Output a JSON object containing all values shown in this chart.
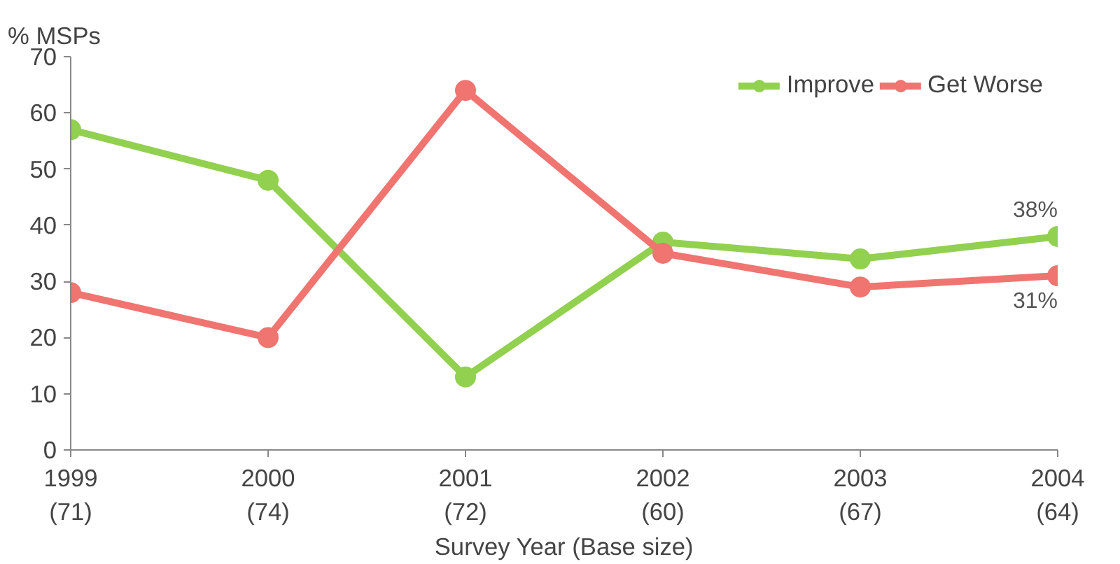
{
  "chart_data": {
    "type": "line",
    "ylabel": "% MSPs",
    "xlabel": "Survey Year (Base size)",
    "categories": [
      "1999\n(71)",
      "2000\n(74)",
      "2001\n(72)",
      "2002\n(60)",
      "2003\n(67)",
      "2004\n(64)"
    ],
    "ylim": [
      0,
      70
    ],
    "yticks": [
      0,
      10,
      20,
      30,
      40,
      50,
      60,
      70
    ],
    "grid": false,
    "legend": "top right",
    "marker": "circle",
    "line_style": "solid",
    "series": [
      {
        "name": "Improve",
        "color": "#92d050",
        "values": [
          57,
          48,
          13,
          37,
          34,
          38
        ],
        "value_labels": [
          null,
          null,
          null,
          null,
          null,
          "38%"
        ]
      },
      {
        "name": "Get Worse",
        "color": "#f07470",
        "values": [
          28,
          20,
          64,
          35,
          29,
          31
        ],
        "value_labels": [
          null,
          null,
          null,
          null,
          null,
          "31%"
        ]
      }
    ]
  }
}
